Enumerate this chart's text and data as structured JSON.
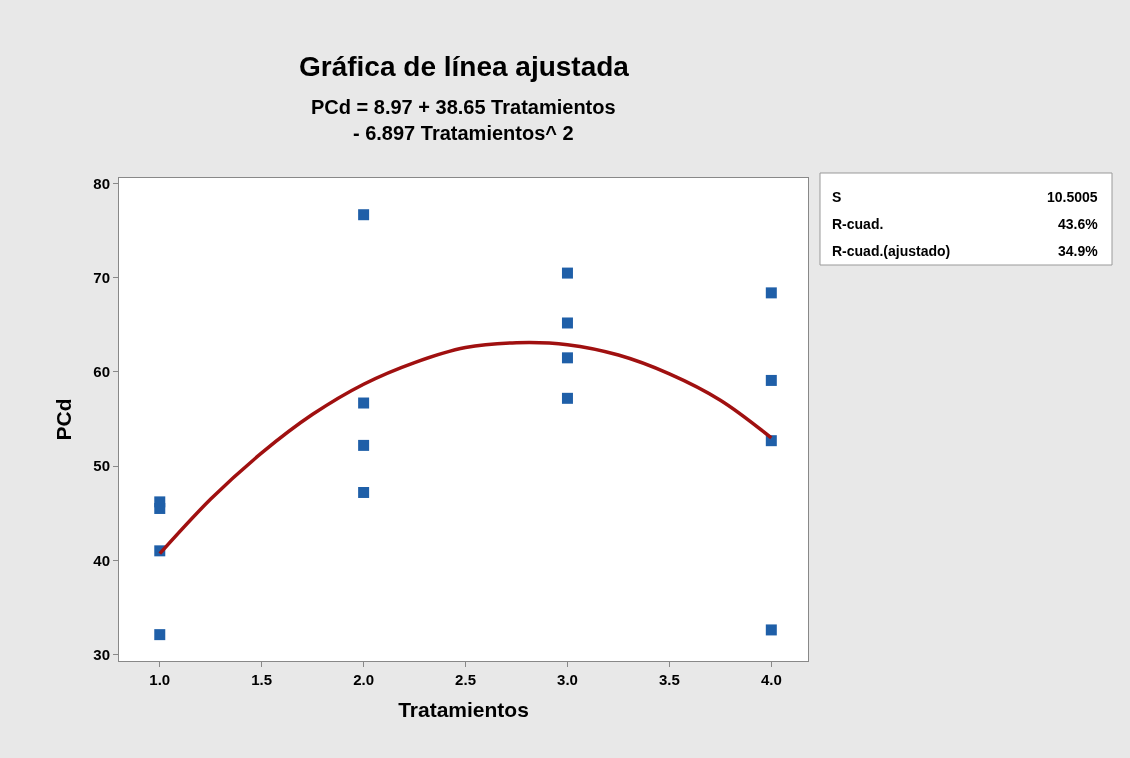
{
  "chart_data": {
    "type": "scatter",
    "title": "Gráfica de línea ajustada",
    "subtitle": "PCd = 8.97 + 38.65 Tratamientos\n- 6.897 Tratamientos^ 2",
    "xlabel": "Tratamientos",
    "ylabel": "PCd",
    "series": [
      {
        "color": "#1f5fa8",
        "marker": "square",
        "x": [
          1,
          1,
          1,
          1,
          2,
          2,
          2,
          2,
          3,
          3,
          3,
          3,
          4,
          4,
          4,
          4
        ],
        "values": [
          46.2,
          45.5,
          41.0,
          32.1,
          76.7,
          56.7,
          52.2,
          47.2,
          70.5,
          65.2,
          61.5,
          57.2,
          68.4,
          59.1,
          52.7,
          32.6
        ]
      },
      {
        "type": "line",
        "color": "#a01010",
        "marker": "none",
        "line_style": "solid",
        "x": [
          1,
          1.25,
          1.5,
          1.75,
          2,
          2.25,
          2.5,
          2.75,
          3,
          3.25,
          3.5,
          3.75,
          4
        ],
        "values": [
          40.7,
          46.5,
          51.4,
          55.5,
          58.7,
          61.0,
          62.6,
          63.1,
          62.9,
          61.8,
          59.8,
          57.0,
          53.0
        ]
      }
    ],
    "xlim": [
      0.8,
      4.18
    ],
    "xticks": [
      {
        "value": 1,
        "label": "1.0"
      },
      1.5,
      {
        "value": 2,
        "label": "2.0"
      },
      2.5,
      {
        "value": 3,
        "label": "3.0"
      },
      3.5,
      {
        "value": 4,
        "label": "4.0"
      }
    ],
    "ylim": [
      29.3,
      80.6
    ],
    "yticks": [
      30,
      40,
      50,
      60,
      70,
      80
    ],
    "legend": false,
    "annotations": [
      "S",
      "10.5005",
      "R-cuad.",
      "43.6%",
      "R-cuad.(ajustado)",
      "34.9%"
    ]
  }
}
